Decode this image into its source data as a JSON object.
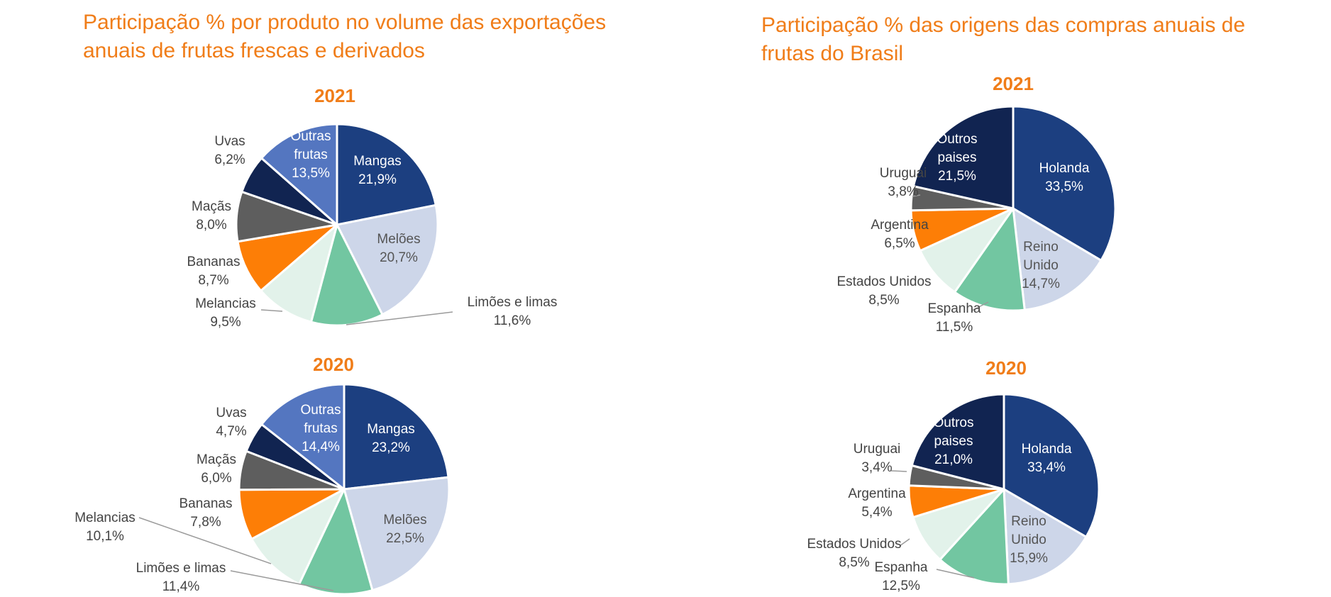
{
  "left_panel": {
    "title": "Participação % por produto no volume das exportações anuais de frutas frescas e derivados"
  },
  "right_panel": {
    "title": "Participação % das origens das compras anuais de frutas do Brasil"
  },
  "colors": {
    "title": "#f07d19",
    "dark_blue": "#1c3f80",
    "light_blue_gray": "#cdd6e9",
    "green": "#72c6a1",
    "pale_green": "#e2f2ea",
    "orange": "#fd7e06",
    "gray": "#5e5e5e",
    "navy": "#112451",
    "mid_blue": "#5476c0",
    "leader": "#9a9a9a"
  },
  "chart_data": [
    {
      "type": "pie",
      "title": "2021",
      "series": [
        {
          "name": "Mangas",
          "value": 21.9,
          "display": "21,9%",
          "color": "#1c3f80"
        },
        {
          "name": "Melões",
          "value": 20.7,
          "display": "20,7%",
          "color": "#cdd6e9"
        },
        {
          "name": "Limões e limas",
          "value": 11.6,
          "display": "11,6%",
          "color": "#72c6a1"
        },
        {
          "name": "Melancias",
          "value": 9.5,
          "display": "9,5%",
          "color": "#e2f2ea"
        },
        {
          "name": "Bananas",
          "value": 8.7,
          "display": "8,7%",
          "color": "#fd7e06"
        },
        {
          "name": "Maçãs",
          "value": 8.0,
          "display": "8,0%",
          "color": "#5e5e5e"
        },
        {
          "name": "Uvas",
          "value": 6.2,
          "display": "6,2%",
          "color": "#112451"
        },
        {
          "name": "Outras frutas",
          "value": 13.5,
          "display": "13,5%",
          "color": "#5476c0"
        }
      ]
    },
    {
      "type": "pie",
      "title": "2020",
      "series": [
        {
          "name": "Mangas",
          "value": 23.2,
          "display": "23,2%",
          "color": "#1c3f80"
        },
        {
          "name": "Melões",
          "value": 22.5,
          "display": "22,5%",
          "color": "#cdd6e9"
        },
        {
          "name": "Limões e limas",
          "value": 11.4,
          "display": "11,4%",
          "color": "#72c6a1"
        },
        {
          "name": "Melancias",
          "value": 10.1,
          "display": "10,1%",
          "color": "#e2f2ea"
        },
        {
          "name": "Bananas",
          "value": 7.8,
          "display": "7,8%",
          "color": "#fd7e06"
        },
        {
          "name": "Maçãs",
          "value": 6.0,
          "display": "6,0%",
          "color": "#5e5e5e"
        },
        {
          "name": "Uvas",
          "value": 4.7,
          "display": "4,7%",
          "color": "#112451"
        },
        {
          "name": "Outras frutas",
          "value": 14.4,
          "display": "14,4%",
          "color": "#5476c0"
        }
      ]
    },
    {
      "type": "pie",
      "title": "2021",
      "series": [
        {
          "name": "Holanda",
          "value": 33.5,
          "display": "33,5%",
          "color": "#1c3f80"
        },
        {
          "name": "Reino Unido",
          "value": 14.7,
          "display": "14,7%",
          "color": "#cdd6e9"
        },
        {
          "name": "Espanha",
          "value": 11.5,
          "display": "11,5%",
          "color": "#72c6a1"
        },
        {
          "name": "Estados Unidos",
          "value": 8.5,
          "display": "8,5%",
          "color": "#e2f2ea"
        },
        {
          "name": "Argentina",
          "value": 6.5,
          "display": "6,5%",
          "color": "#fd7e06"
        },
        {
          "name": "Uruguai",
          "value": 3.8,
          "display": "3,8%",
          "color": "#5e5e5e"
        },
        {
          "name": "Outros paises",
          "value": 21.5,
          "display": "21,5%",
          "color": "#112451"
        }
      ]
    },
    {
      "type": "pie",
      "title": "2020",
      "series": [
        {
          "name": "Holanda",
          "value": 33.4,
          "display": "33,4%",
          "color": "#1c3f80"
        },
        {
          "name": "Reino Unido",
          "value": 15.9,
          "display": "15,9%",
          "color": "#cdd6e9"
        },
        {
          "name": "Espanha",
          "value": 12.5,
          "display": "12,5%",
          "color": "#72c6a1"
        },
        {
          "name": "Estados Unidos",
          "value": 8.5,
          "display": "8,5%",
          "color": "#e2f2ea"
        },
        {
          "name": "Argentina",
          "value": 5.4,
          "display": "5,4%",
          "color": "#fd7e06"
        },
        {
          "name": "Uruguai",
          "value": 3.4,
          "display": "3,4%",
          "color": "#5e5e5e"
        },
        {
          "name": "Outros paises",
          "value": 21.0,
          "display": "21,0%",
          "color": "#112451"
        }
      ]
    }
  ]
}
